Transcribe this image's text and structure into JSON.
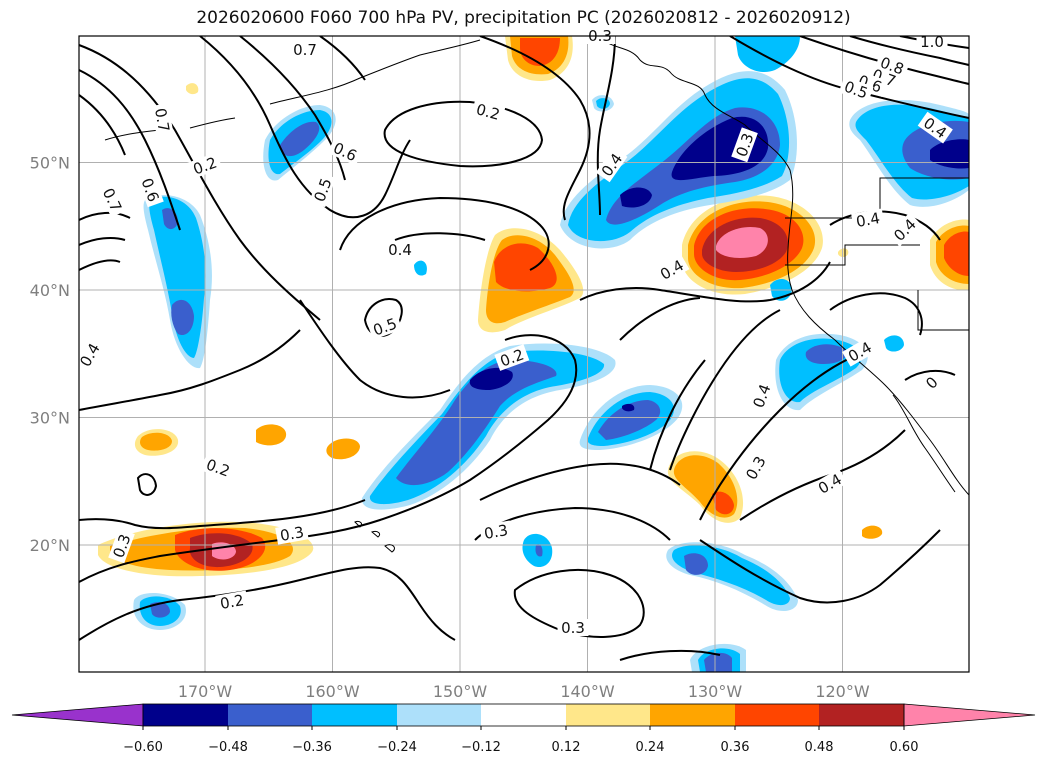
{
  "title": "2026020600 F060 700 hPa PV, precipitation PC (2026020812 - 2026020912)",
  "map": {
    "lat_ticks": [
      {
        "value": 50,
        "label": "50°N"
      },
      {
        "value": 40,
        "label": "40°N"
      },
      {
        "value": 30,
        "label": "30°N"
      },
      {
        "value": 20,
        "label": "20°N"
      }
    ],
    "lon_ticks": [
      {
        "value": -170,
        "label": "170°W"
      },
      {
        "value": -160,
        "label": "160°W"
      },
      {
        "value": -150,
        "label": "150°W"
      },
      {
        "value": -140,
        "label": "140°W"
      },
      {
        "value": -130,
        "label": "130°W"
      },
      {
        "value": -120,
        "label": "120°W"
      }
    ],
    "contour_labels": [
      "0.7",
      "0.7",
      "0.6",
      "0.5",
      "0.4",
      "0.2",
      "0.7",
      "0.6",
      "0.4",
      "0.3",
      "0.8",
      "0.7",
      "0.6",
      "0.5",
      "1.0",
      "0.4",
      "0.4",
      "0.4",
      "0.4",
      "0.4",
      "0.5",
      "0.2",
      "0.4",
      "0.2",
      "0.2",
      "0.3",
      "0.3",
      "0.3",
      "0.3",
      "0.3",
      "0.4",
      "0.2",
      "0.3",
      "0.4",
      "0"
    ]
  },
  "colorbar": {
    "colors": [
      "#9932CC",
      "#00008B",
      "#3A5FCD",
      "#00BFFF",
      "#ADE0FA",
      "#FFFFFF",
      "#FFE78A",
      "#FFA500",
      "#FF4500",
      "#B22222",
      "#FF83AA"
    ],
    "tick_labels": [
      "−0.60",
      "−0.48",
      "−0.36",
      "−0.24",
      "−0.12",
      "0.12",
      "0.24",
      "0.36",
      "0.48",
      "0.60"
    ]
  },
  "colors": {
    "contour": "#000000",
    "grid": "#b0b0b0",
    "coast": "#000000"
  }
}
